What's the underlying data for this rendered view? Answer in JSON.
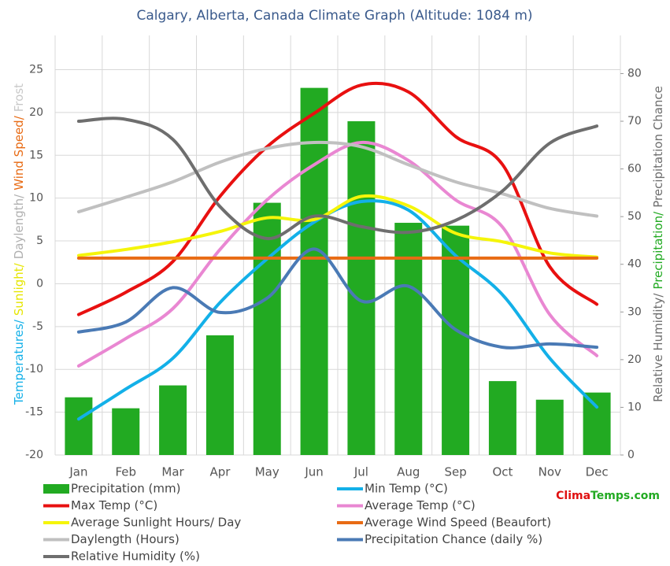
{
  "chart_data": {
    "type": "bar",
    "title": "Calgary, Alberta, Canada Climate Graph (Altitude: 1084 m)",
    "categories": [
      "Jan",
      "Feb",
      "Mar",
      "Apr",
      "May",
      "Jun",
      "Jul",
      "Aug",
      "Sep",
      "Oct",
      "Nov",
      "Dec"
    ],
    "ylim": [
      -20,
      29
    ],
    "yticks": [
      -20,
      -15,
      -10,
      -5,
      0,
      5,
      10,
      15,
      20,
      25
    ],
    "y2lim": [
      0,
      88
    ],
    "y2ticks": [
      0,
      10,
      20,
      30,
      40,
      50,
      60,
      70,
      80
    ],
    "grid": true,
    "y_label_parts": [
      {
        "text": "Temperatures/",
        "color": "#13b0e8"
      },
      {
        "text": "Sunlight/",
        "color": "#e6e600"
      },
      {
        "text": "Daylength/",
        "color": "#b0b0b0"
      },
      {
        "text": "Wind Speed/",
        "color": "#e86b14"
      },
      {
        "text": "Frost",
        "color": "#c8c8c8"
      }
    ],
    "y2_label_parts": [
      {
        "text": "Relative Humidity/",
        "color": "#6e6e6e"
      },
      {
        "text": "Precipitation/",
        "color": "#22aa22"
      },
      {
        "text": "Precipitation Chance",
        "color": "#6e6e6e"
      }
    ],
    "watermark_parts": [
      {
        "text": "Clima",
        "color": "#e01010"
      },
      {
        "text": "Temps.com",
        "color": "#22aa22"
      }
    ],
    "series": [
      {
        "name": "Precipitation (mm)",
        "type": "bar",
        "axis": "y2",
        "color": "#22aa22",
        "values": [
          12.1,
          9.8,
          14.6,
          25.1,
          52.9,
          77,
          70,
          48.7,
          48.1,
          15.5,
          11.6,
          13.1
        ]
      },
      {
        "name": "Min Temp (°C)",
        "type": "line",
        "color": "#13b0e8",
        "values": [
          -15.8,
          -12.3,
          -8.7,
          -2.2,
          2.9,
          7.2,
          9.6,
          8.6,
          3.3,
          -1.3,
          -8.7,
          -14.4
        ]
      },
      {
        "name": "Max Temp (°C)",
        "type": "line",
        "color": "#e81010",
        "values": [
          -3.6,
          -1.0,
          2.6,
          10.2,
          16.0,
          19.9,
          23.2,
          22.4,
          17.2,
          13.9,
          2.0,
          -2.4
        ]
      },
      {
        "name": "Average Temp (°C)",
        "type": "line",
        "color": "#e987d2",
        "values": [
          -9.6,
          -6.4,
          -2.9,
          4.0,
          9.8,
          13.9,
          16.5,
          14.4,
          9.8,
          6.6,
          -3.6,
          -8.4
        ]
      },
      {
        "name": "Average Sunlight Hours/ Day",
        "type": "line",
        "color": "#f5f50a",
        "values": [
          3.3,
          4.0,
          4.9,
          6.1,
          7.7,
          7.5,
          10.2,
          9.1,
          5.9,
          4.9,
          3.6,
          3.1
        ]
      },
      {
        "name": "Average Wind Speed (Beaufort)",
        "type": "line",
        "color": "#e86b14",
        "values": [
          3,
          3,
          3,
          3,
          3,
          3,
          3,
          3,
          3,
          3,
          3,
          3
        ]
      },
      {
        "name": "Daylength (Hours)",
        "type": "line",
        "color": "#c0c0c0",
        "values": [
          8.4,
          10.1,
          11.9,
          14.2,
          15.8,
          16.5,
          16.0,
          13.9,
          11.9,
          10.5,
          8.8,
          7.9
        ]
      },
      {
        "name": "Precipitation Chance (daily %)",
        "type": "line",
        "axis": "y2",
        "color": "#4a7ab5",
        "values": [
          25.8,
          27.9,
          35.1,
          29.9,
          32.9,
          43.2,
          32.3,
          35.4,
          26.3,
          22.6,
          23.3,
          22.6
        ]
      },
      {
        "name": "Relative Humidity (%)",
        "type": "line",
        "axis": "y2",
        "color": "#6e6e6e",
        "values": [
          70,
          70.4,
          66.2,
          52.1,
          45.4,
          50.1,
          47.9,
          46.7,
          49.2,
          55.4,
          65.4,
          69
        ]
      }
    ]
  }
}
